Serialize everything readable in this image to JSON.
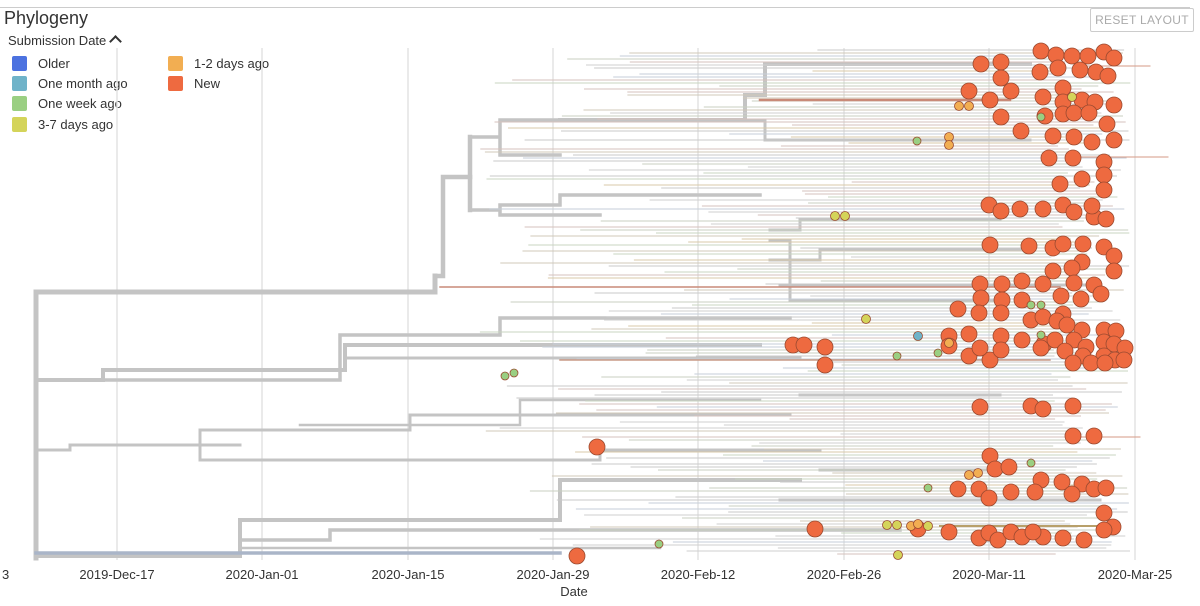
{
  "panel": {
    "title": "Phylogeny",
    "reset_label": "RESET LAYOUT"
  },
  "legend": {
    "title": "Submission Date",
    "items": [
      {
        "label": "Older",
        "color": "#4C72E0"
      },
      {
        "label": "One month ago",
        "color": "#6FB3C9"
      },
      {
        "label": "One week ago",
        "color": "#9ACF82"
      },
      {
        "label": "3-7 days ago",
        "color": "#D4D45A"
      },
      {
        "label": "1-2 days ago",
        "color": "#F2AE52"
      },
      {
        "label": "New",
        "color": "#EE6A40"
      }
    ]
  },
  "chart_data": {
    "type": "scatter",
    "title": "Phylogeny",
    "xlabel": "Date",
    "ylabel": "",
    "x_tick_labels": [
      "3",
      "2019-Dec-17",
      "2020-Jan-01",
      "2020-Jan-15",
      "2020-Jan-29",
      "2020-Feb-12",
      "2020-Feb-26",
      "2020-Mar-11",
      "2020-Mar-25"
    ],
    "xlim": [
      "2019-Dec-03",
      "2020-Mar-26"
    ],
    "grid": true,
    "legend_position": "top-left",
    "colors": {
      "branch": "#c4c4c4",
      "older": "#4C72E0",
      "month": "#6FB3C9",
      "week": "#9ACF82",
      "days37": "#D4D45A",
      "days12": "#F2AE52",
      "new": "#EE6A40"
    }
  }
}
